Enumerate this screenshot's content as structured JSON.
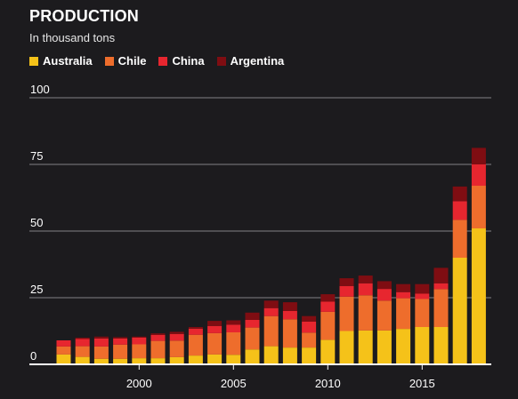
{
  "chart_data": {
    "type": "bar",
    "stacked": true,
    "title": "PRODUCTION",
    "subtitle": "In thousand tons",
    "xlabel": "",
    "ylabel": "",
    "ylim": [
      0,
      100
    ],
    "yticks": [
      0,
      25,
      50,
      75,
      100
    ],
    "x": [
      1996,
      1997,
      1998,
      1999,
      2000,
      2001,
      2002,
      2003,
      2004,
      2005,
      2006,
      2007,
      2008,
      2009,
      2010,
      2011,
      2012,
      2013,
      2014,
      2015,
      2016,
      2017,
      2018
    ],
    "xticks": [
      2000,
      2005,
      2010,
      2015
    ],
    "legend_position": "top-left",
    "grid": true,
    "series": [
      {
        "name": "Australia",
        "color": "#f5c219",
        "values": [
          3.7,
          2.8,
          2.1,
          2.1,
          2.3,
          2.3,
          2.7,
          3.3,
          3.7,
          3.6,
          5.6,
          6.8,
          6.3,
          6.3,
          9.2,
          12.5,
          12.7,
          12.7,
          13.3,
          14.0,
          14.0,
          40.0,
          51.0
        ]
      },
      {
        "name": "Chile",
        "color": "#ee6d2c",
        "values": [
          3.0,
          4.0,
          4.6,
          5.3,
          5.2,
          6.5,
          6.2,
          7.8,
          8.0,
          8.4,
          8.2,
          11.3,
          10.6,
          5.6,
          10.5,
          12.9,
          13.2,
          11.2,
          11.5,
          10.5,
          14.2,
          14.2,
          16.0
        ]
      },
      {
        "name": "China",
        "color": "#e7262f",
        "values": [
          2.3,
          2.7,
          3.0,
          2.3,
          2.5,
          2.2,
          2.5,
          2.3,
          2.7,
          2.9,
          2.9,
          3.0,
          3.1,
          4.1,
          3.8,
          4.0,
          4.5,
          4.4,
          2.3,
          2.0,
          2.2,
          7.0,
          8.0
        ]
      },
      {
        "name": "Argentina",
        "color": "#7f0d12",
        "values": [
          0.0,
          0.5,
          0.7,
          0.5,
          0.4,
          0.6,
          0.8,
          0.6,
          1.9,
          1.6,
          2.7,
          2.8,
          3.3,
          2.1,
          2.8,
          2.9,
          2.9,
          2.9,
          3.0,
          3.6,
          5.8,
          5.5,
          6.2
        ]
      }
    ]
  }
}
